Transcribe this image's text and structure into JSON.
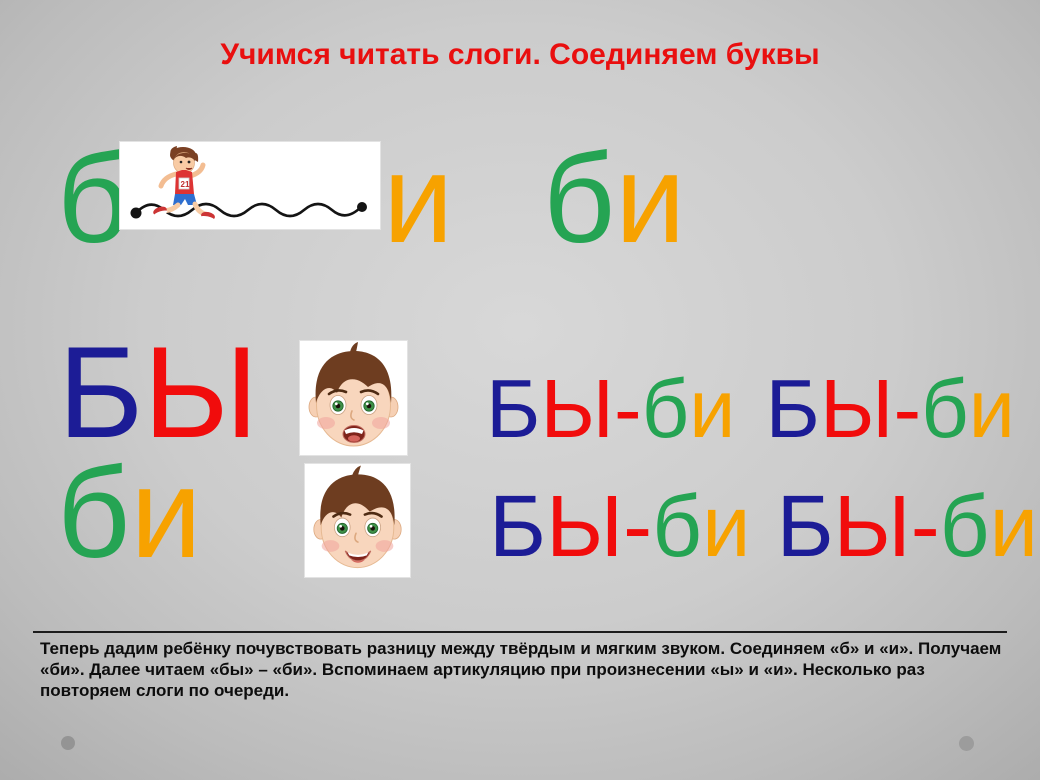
{
  "title": "Учимся читать слоги. Соединяем буквы",
  "colors": {
    "title_red": "#e90f0f",
    "letter_green": "#25a453",
    "letter_orange": "#f7a200",
    "letter_navy": "#1c1c96",
    "letter_red": "#f10c0c",
    "background_center": "#d8d8d8",
    "background_edge": "#a7a7a7",
    "footer_text_color": "#0d0d0d"
  },
  "row1": {
    "hard_letter": [
      {
        "t": "б",
        "c": "#25a453"
      }
    ],
    "soft_letter": [
      {
        "t": "и",
        "c": "#f7a200"
      }
    ],
    "result_syllable": [
      {
        "t": "б",
        "c": "#25a453"
      },
      {
        "t": "и",
        "c": "#f7a200"
      }
    ]
  },
  "row2": {
    "word": [
      {
        "t": "Б",
        "c": "#1c1c96"
      },
      {
        "t": "Ы",
        "c": "#f10c0c"
      }
    ],
    "pairs": [
      [
        {
          "t": "Б",
          "c": "#1c1c96"
        },
        {
          "t": "Ы",
          "c": "#f10c0c"
        },
        {
          "t": "-",
          "c": "#f10c0c"
        },
        {
          "t": "б",
          "c": "#25a453"
        },
        {
          "t": "и",
          "c": "#f7a200"
        }
      ],
      [
        {
          "t": "Б",
          "c": "#1c1c96"
        },
        {
          "t": "Ы",
          "c": "#f10c0c"
        },
        {
          "t": "-",
          "c": "#f10c0c"
        },
        {
          "t": "б",
          "c": "#25a453"
        },
        {
          "t": "и",
          "c": "#f7a200"
        }
      ]
    ]
  },
  "row3": {
    "word": [
      {
        "t": "б",
        "c": "#25a453"
      },
      {
        "t": "и",
        "c": "#f7a200"
      }
    ],
    "pairs": [
      [
        {
          "t": "Б",
          "c": "#1c1c96"
        },
        {
          "t": "Ы",
          "c": "#f10c0c"
        },
        {
          "t": "-",
          "c": "#f10c0c"
        },
        {
          "t": "б",
          "c": "#25a453"
        },
        {
          "t": "и",
          "c": "#f7a200"
        }
      ],
      [
        {
          "t": "Б",
          "c": "#1c1c96"
        },
        {
          "t": "Ы",
          "c": "#f10c0c"
        },
        {
          "t": "-",
          "c": "#f10c0c"
        },
        {
          "t": "б",
          "c": "#25a453"
        },
        {
          "t": "и",
          "c": "#f7a200"
        }
      ]
    ]
  },
  "footer": {
    "text": "Теперь дадим ребёнку почувствовать разницу между твёрдым и мягким звуком. Соединяем «б» и «и». Получаем «би». Далее читаем «бы» – «би». Вспоминаем артикуляцию при произнесении «ы» и «и». Несколько раз повторяем слоги по очереди."
  },
  "images": {
    "runner": "running-boy-with-wavy-path",
    "face_hard": "boy-face-pronouncing-y",
    "face_soft": "boy-face-pronouncing-i"
  }
}
